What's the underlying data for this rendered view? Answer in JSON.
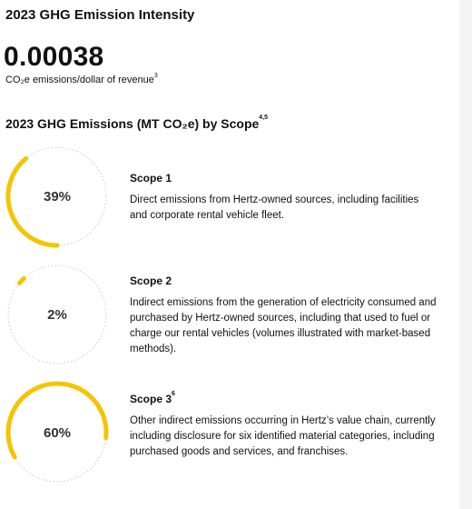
{
  "header": {
    "title": "2023 GHG Emission Intensity",
    "metric": "0.00038",
    "metric_caption": "CO₂e emissions/dollar of revenue",
    "metric_caption_note": "3"
  },
  "section": {
    "title": "2023 GHG Emissions (MT CO₂e) by Scope",
    "title_note": "4,5",
    "items": [
      {
        "value": 39,
        "value_label": "39%",
        "heading": "Scope 1",
        "description": "Direct emissions from Hertz-owned sources, including facilities and corporate rental vehicle fleet."
      },
      {
        "value": 2,
        "value_label": "2%",
        "heading": "Scope 2",
        "description": "Indirect emissions from the generation of electricity consumed and purchased by Hertz-owned sources, including that used to fuel or charge our rental vehicles (volumes illustrated with market-based methods)."
      },
      {
        "value": 60,
        "value_label": "60%",
        "heading": "Scope 3",
        "heading_note": "6",
        "description": "Other indirect emissions occurring in Hertz’s value chain, currently including disclosure for six identified material categories, including purchased goods and services, and franchises."
      }
    ]
  }
}
